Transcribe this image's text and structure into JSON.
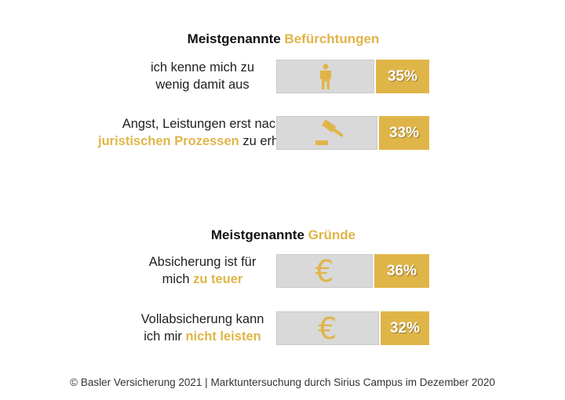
{
  "chart_data": {
    "type": "bar",
    "footer": "© Basler Versicherung 2021 | Marktuntersuchung durch Sirius Campus im Dezember 2020",
    "groups": [
      {
        "title_plain": "Meistgenannte ",
        "title_highlight": "Befürchtungen",
        "items": [
          {
            "icon": "person-icon",
            "label_lines": [
              [
                {
                  "t": "ich kenne mich zu",
                  "h": false
                }
              ],
              [
                {
                  "t": "wenig damit aus",
                  "h": false
                }
              ]
            ],
            "value": 35,
            "value_label": "35%"
          },
          {
            "icon": "gavel-icon",
            "label_lines": [
              [
                {
                  "t": "Angst, Leistungen erst nach",
                  "h": false
                }
              ],
              [
                {
                  "t": "juristischen Prozessen",
                  "h": true
                },
                {
                  "t": " zu erhalten",
                  "h": false
                }
              ]
            ],
            "value": 33,
            "value_label": "33%"
          }
        ]
      },
      {
        "title_plain": "Meistgenannte ",
        "title_highlight": "Gründe",
        "items": [
          {
            "icon": "euro-icon",
            "label_lines": [
              [
                {
                  "t": "Absicherung ist für",
                  "h": false
                }
              ],
              [
                {
                  "t": "mich ",
                  "h": false
                },
                {
                  "t": "zu teuer",
                  "h": true
                }
              ]
            ],
            "value": 36,
            "value_label": "36%"
          },
          {
            "icon": "euro-icon",
            "label_lines": [
              [
                {
                  "t": "Vollabsicherung kann",
                  "h": false
                }
              ],
              [
                {
                  "t": "ich mir ",
                  "h": false
                },
                {
                  "t": "nicht leisten",
                  "h": true
                }
              ]
            ],
            "value": 32,
            "value_label": "32%"
          }
        ]
      }
    ],
    "colors": {
      "accent": "#e0b548",
      "bar_bg": "#d9d9d9"
    }
  }
}
